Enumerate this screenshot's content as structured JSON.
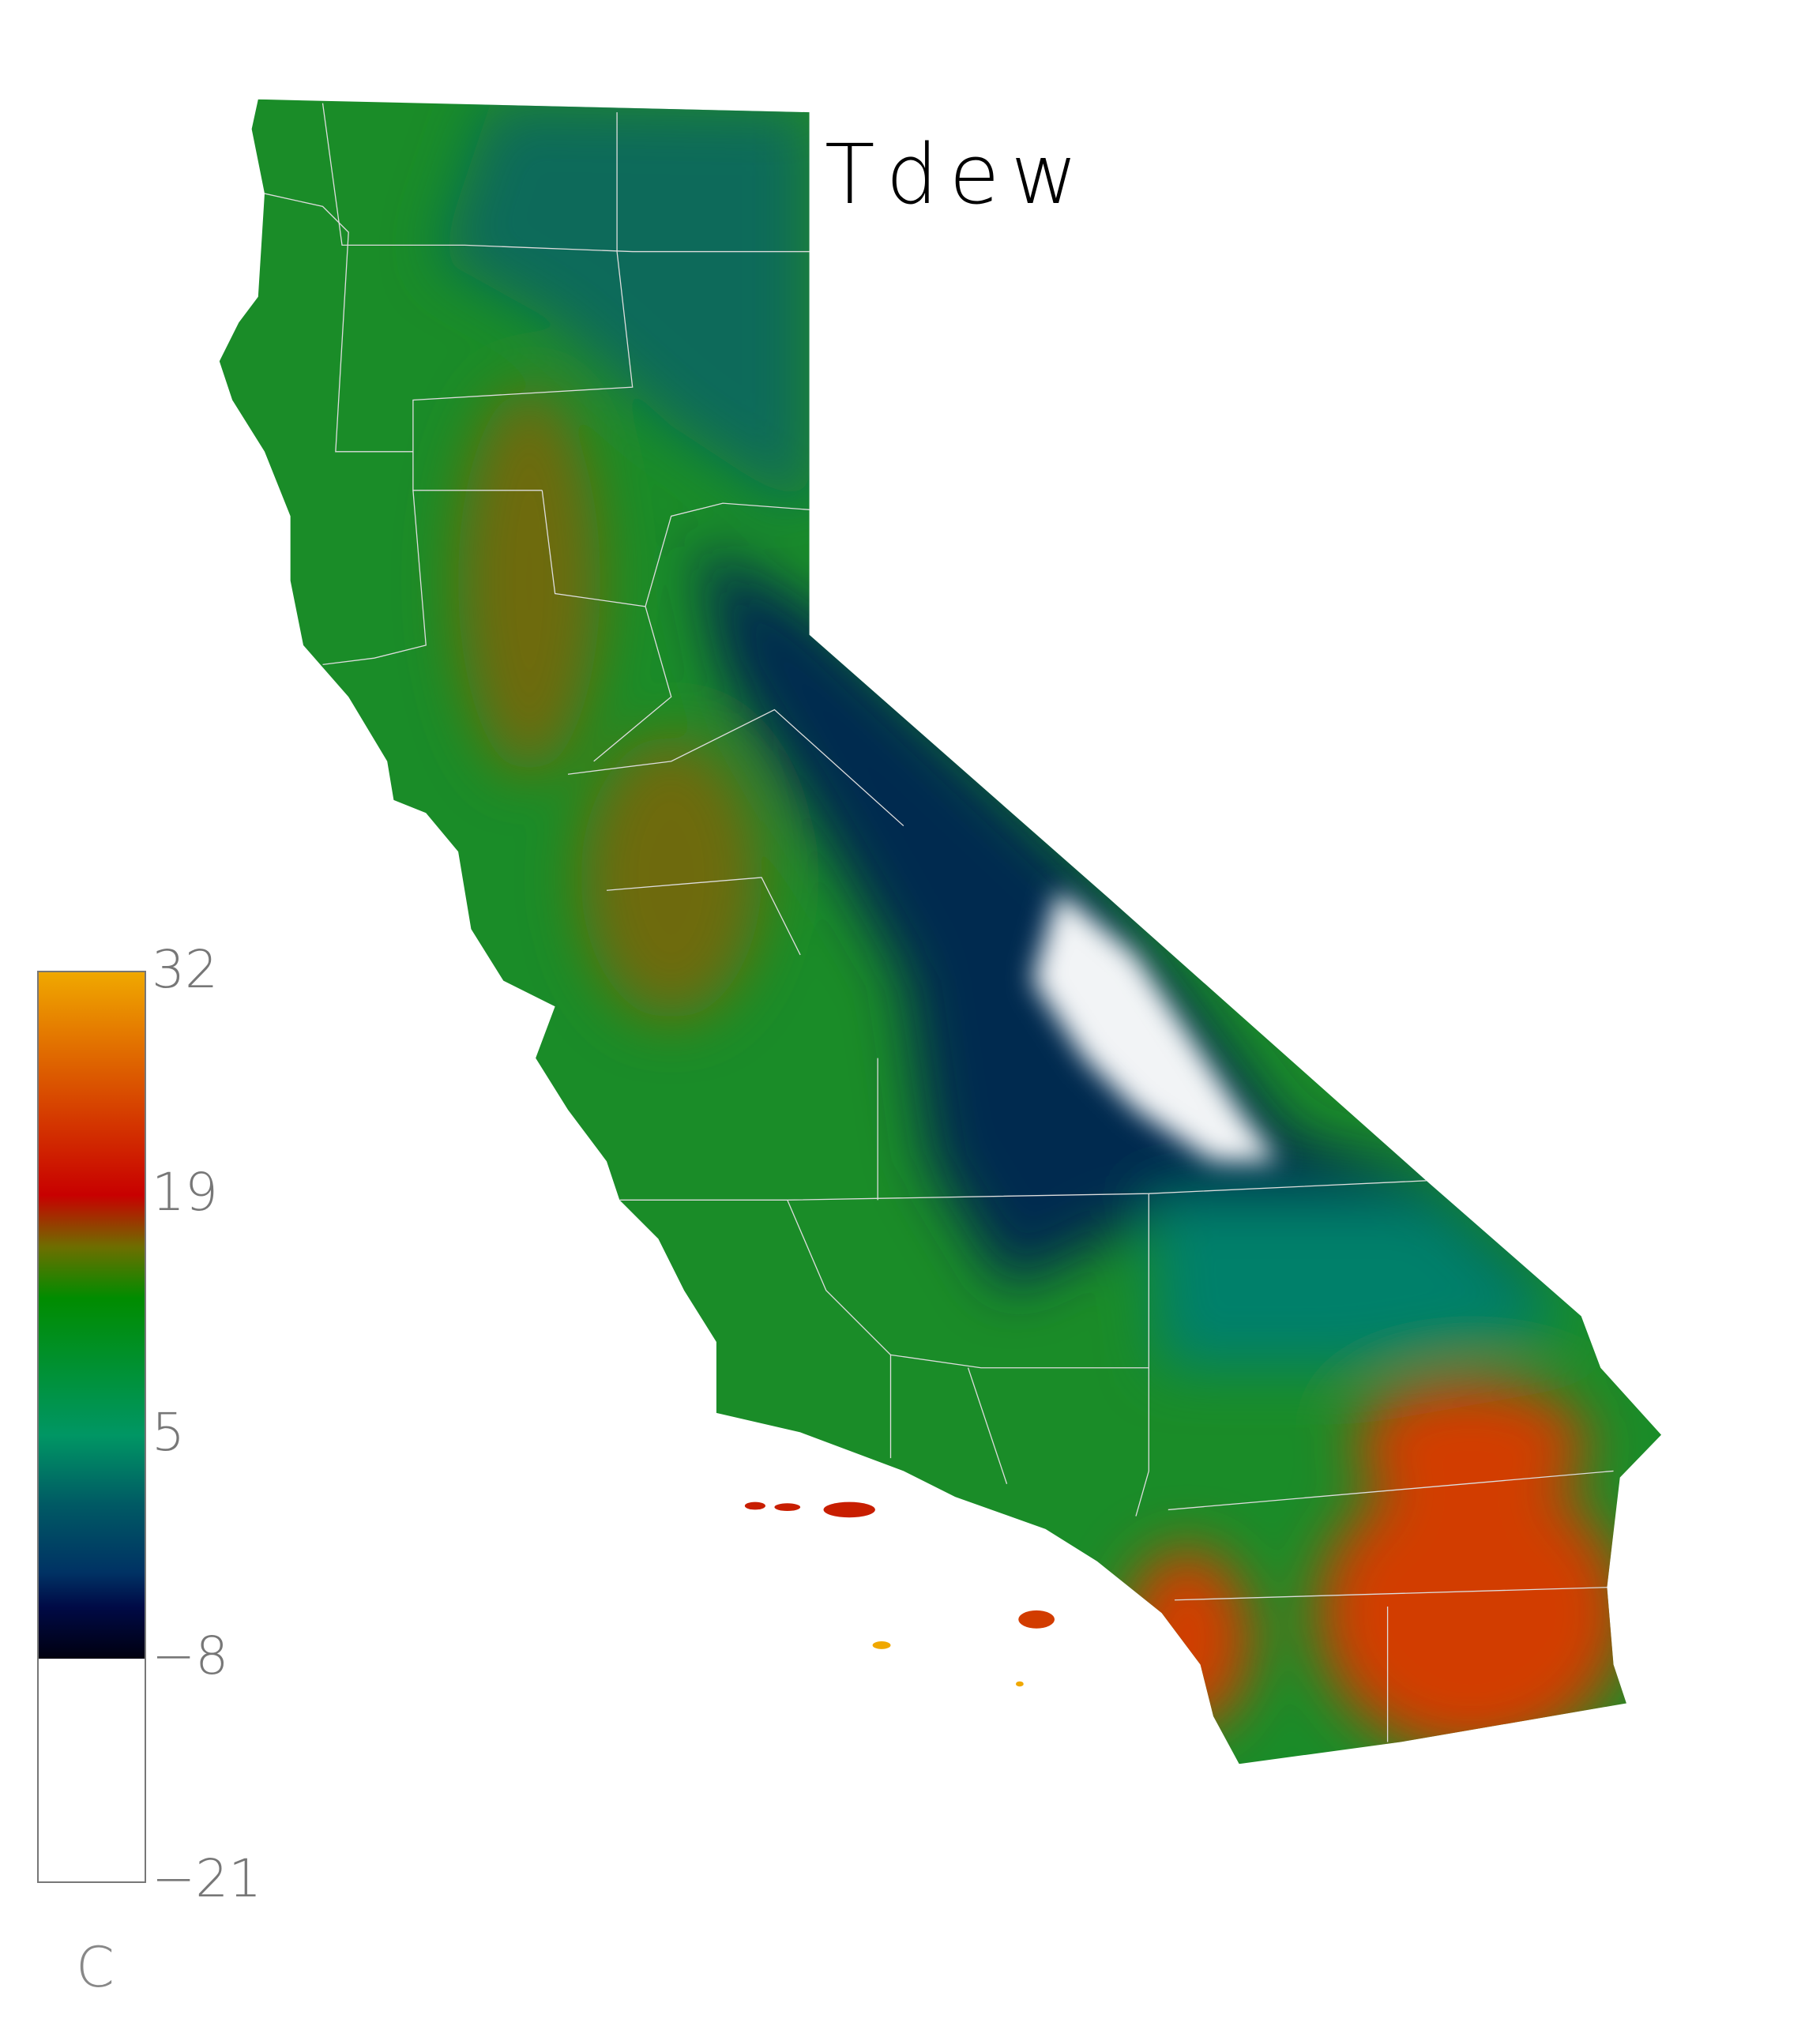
{
  "title": "Tdew",
  "colorbar": {
    "unit": "C",
    "min": -21,
    "max": 32,
    "ticks": [
      "32",
      "19",
      "5",
      "−8",
      "−21"
    ],
    "below_range_color": "#ffffff",
    "stops": [
      {
        "value": 32,
        "color": "#f0a800"
      },
      {
        "value": 26,
        "color": "#dc5a00"
      },
      {
        "value": 19,
        "color": "#c80000"
      },
      {
        "value": 16,
        "color": "#6e6e00"
      },
      {
        "value": 13,
        "color": "#008c00"
      },
      {
        "value": 5,
        "color": "#009664"
      },
      {
        "value": 1,
        "color": "#005a64"
      },
      {
        "value": -3,
        "color": "#003264"
      },
      {
        "value": -5,
        "color": "#000a46"
      },
      {
        "value": -8,
        "color": "#000010"
      }
    ]
  },
  "map": {
    "region": "California",
    "boundaries": "county lines",
    "palette": {
      "coast": "#1a8c28",
      "valley": "#6e6a10",
      "sierra": "#002a50",
      "desert": "#d23c00",
      "islands": "#c81e00",
      "background": "#ffffff"
    }
  }
}
